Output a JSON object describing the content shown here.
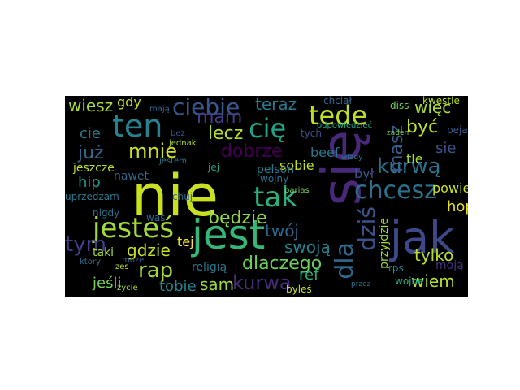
{
  "background": "#000000",
  "page_background": "#ffffff",
  "words": [
    {
      "text": "nie",
      "color": "#c9e020"
    },
    {
      "text": "się",
      "color": "#482878"
    },
    {
      "text": "jest",
      "color": "#35b779"
    },
    {
      "text": "jak",
      "color": "#3e4989"
    },
    {
      "text": "ten",
      "color": "#26828e"
    },
    {
      "text": "tak",
      "color": "#2ab07f"
    },
    {
      "text": "jesteś",
      "color": "#a2da37"
    },
    {
      "text": "tede",
      "color": "#bddf26"
    },
    {
      "text": "cię",
      "color": "#20a386"
    },
    {
      "text": "chcesz",
      "color": "#2d708e"
    },
    {
      "text": "kurwą",
      "color": "#2c728e"
    },
    {
      "text": "dla",
      "color": "#31688e"
    },
    {
      "text": "dziś",
      "color": "#3b528b"
    },
    {
      "text": "ciebie",
      "color": "#38588c"
    },
    {
      "text": "mnie",
      "color": "#d0e11c"
    },
    {
      "text": "dobrze",
      "color": "#440154"
    },
    {
      "text": "już",
      "color": "#31688e"
    },
    {
      "text": "mam",
      "color": "#433e85"
    },
    {
      "text": "lecz",
      "color": "#b5de2b"
    },
    {
      "text": "być",
      "color": "#c2df23"
    },
    {
      "text": "więc",
      "color": "#a8db34"
    },
    {
      "text": "masz",
      "color": "#365d8d"
    },
    {
      "text": "teraz",
      "color": "#2a788e"
    },
    {
      "text": "wiesz",
      "color": "#a5db36"
    },
    {
      "text": "tym",
      "color": "#433e85"
    },
    {
      "text": "rap",
      "color": "#a2da37"
    },
    {
      "text": "gdzie",
      "color": "#c8e020"
    },
    {
      "text": "twój",
      "color": "#31688e"
    },
    {
      "text": "będzie",
      "color": "#93d741"
    },
    {
      "text": "kurwa",
      "color": "#472c7a"
    },
    {
      "text": "dlaczego",
      "color": "#6ccd5a"
    },
    {
      "text": "swoją",
      "color": "#25838e"
    },
    {
      "text": "tobie",
      "color": "#25858e"
    },
    {
      "text": "sam",
      "color": "#9bd93c"
    },
    {
      "text": "wiem",
      "color": "#b5de2b"
    },
    {
      "text": "hop",
      "color": "#e5e419"
    },
    {
      "text": "hip",
      "color": "#1f9a8a"
    },
    {
      "text": "tylko",
      "color": "#b8de29"
    },
    {
      "text": "powiedz",
      "color": "#cae11f"
    },
    {
      "text": "cie",
      "color": "#2a788e"
    },
    {
      "text": "jeśli",
      "color": "#75d054"
    },
    {
      "text": "sie",
      "color": "#3b528b"
    },
    {
      "text": "tle",
      "color": "#a5db36"
    },
    {
      "text": "ref",
      "color": "#2eb37c"
    },
    {
      "text": "był",
      "color": "#3b528b"
    },
    {
      "text": "beef",
      "color": "#2a788e"
    },
    {
      "text": "gdy",
      "color": "#bddf26"
    },
    {
      "text": "sobie",
      "color": "#c2df23"
    },
    {
      "text": "pelson",
      "color": "#2a788e"
    },
    {
      "text": "nawet",
      "color": "#31688e"
    },
    {
      "text": "jeszcze",
      "color": "#b8de29"
    },
    {
      "text": "tej",
      "color": "#fde725"
    },
    {
      "text": "uprzedzam",
      "color": "#2a788e"
    },
    {
      "text": "nigdy",
      "color": "#2c728e"
    },
    {
      "text": "taki",
      "color": "#a5db36"
    },
    {
      "text": "przyjdzie",
      "color": "#a0da39"
    },
    {
      "text": "wojny",
      "color": "#2c728e"
    },
    {
      "text": "tych",
      "color": "#3b528b"
    },
    {
      "text": "moją",
      "color": "#46327e"
    },
    {
      "text": "było",
      "color": "#31688e"
    },
    {
      "text": "rps",
      "color": "#25858e"
    },
    {
      "text": "religią",
      "color": "#2a788e"
    },
    {
      "text": "kwestie",
      "color": "#b5de2b"
    },
    {
      "text": "diss",
      "color": "#6ece58"
    },
    {
      "text": "chciał",
      "color": "#31688e"
    },
    {
      "text": "peja",
      "color": "#365d8d"
    },
    {
      "text": "odpowiedzieć",
      "color": "#25ab82"
    },
    {
      "text": "parias",
      "color": "#75d054"
    },
    {
      "text": "chuj",
      "color": "#31688e"
    },
    {
      "text": "jednak",
      "color": "#a8db34"
    },
    {
      "text": "jestem",
      "color": "#2a788e"
    },
    {
      "text": "byleś",
      "color": "#c8e020"
    },
    {
      "text": "życie",
      "color": "#a2da37"
    },
    {
      "text": "mają",
      "color": "#31688e"
    },
    {
      "text": "bez",
      "color": "#3b528b"
    },
    {
      "text": "moze",
      "color": "#365d8d"
    },
    {
      "text": "ktory",
      "color": "#2c728e"
    },
    {
      "text": "zaden",
      "color": "#6ece58"
    },
    {
      "text": "wlady",
      "color": "#2a788e"
    },
    {
      "text": "przez",
      "color": "#2c728e"
    },
    {
      "text": "wojne",
      "color": "#2eb37c"
    },
    {
      "text": "jej",
      "color": "#1fa187"
    },
    {
      "text": "was",
      "color": "#31688e"
    },
    {
      "text": "zes",
      "color": "#b5de2b"
    }
  ]
}
